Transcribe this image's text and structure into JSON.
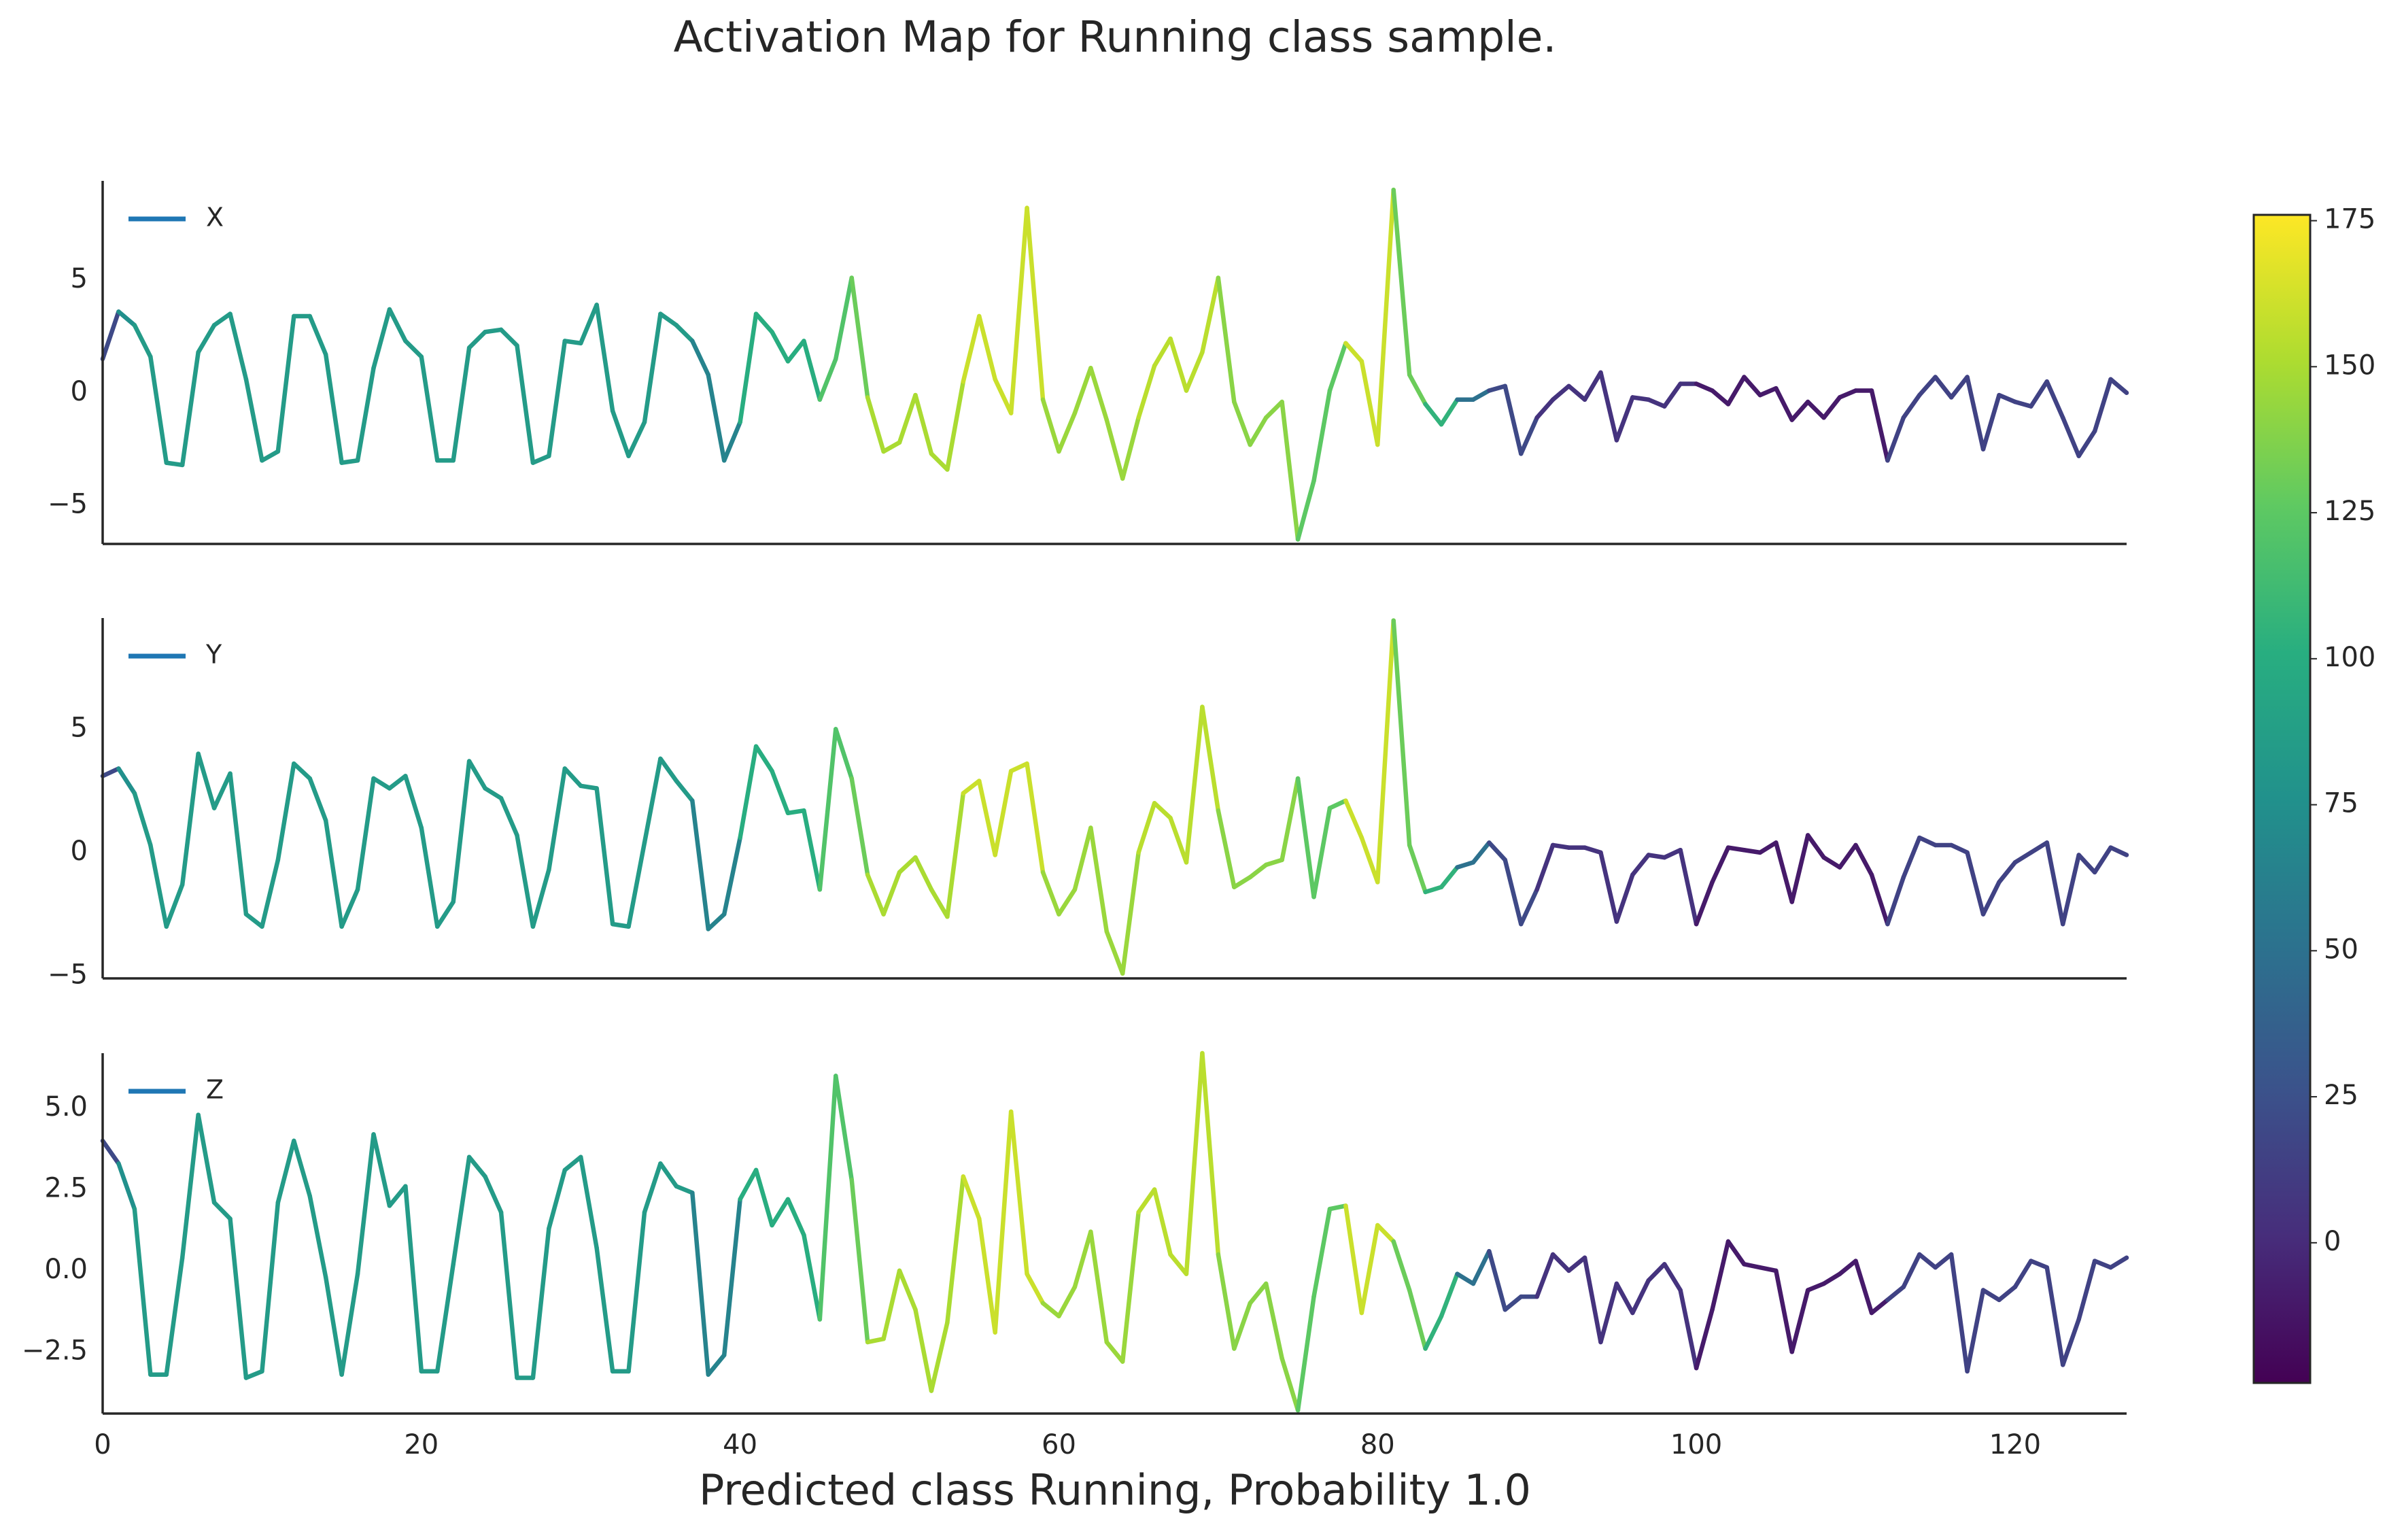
{
  "chart_data": {
    "type": "line",
    "title": "Activation Map for Running class sample.",
    "xlabel": "Predicted class Running, Probability 1.0",
    "x": [
      0,
      1,
      2,
      3,
      4,
      5,
      6,
      7,
      8,
      9,
      10,
      11,
      12,
      13,
      14,
      15,
      16,
      17,
      18,
      19,
      20,
      21,
      22,
      23,
      24,
      25,
      26,
      27,
      28,
      29,
      30,
      31,
      32,
      33,
      34,
      35,
      36,
      37,
      38,
      39,
      40,
      41,
      42,
      43,
      44,
      45,
      46,
      47,
      48,
      49,
      50,
      51,
      52,
      53,
      54,
      55,
      56,
      57,
      58,
      59,
      60,
      61,
      62,
      63,
      64,
      65,
      66,
      67,
      68,
      69,
      70,
      71,
      72,
      73,
      74,
      75,
      76,
      77,
      78,
      79,
      80,
      81,
      82,
      83,
      84,
      85,
      86,
      87,
      88,
      89,
      90,
      91,
      92,
      93,
      94,
      95,
      96,
      97,
      98,
      99,
      100,
      101,
      102,
      103,
      104,
      105,
      106,
      107,
      108,
      109,
      110,
      111,
      112,
      113,
      114,
      115,
      116,
      117,
      118,
      119,
      120,
      121,
      122,
      123,
      124,
      125,
      126,
      127
    ],
    "xlim": [
      0,
      127
    ],
    "xticks": [
      0,
      20,
      40,
      60,
      80,
      100,
      120
    ],
    "activation": [
      20,
      75,
      85,
      85,
      85,
      85,
      85,
      85,
      85,
      85,
      85,
      85,
      85,
      85,
      85,
      85,
      85,
      85,
      85,
      85,
      85,
      85,
      85,
      85,
      85,
      85,
      85,
      85,
      85,
      85,
      85,
      85,
      85,
      85,
      85,
      85,
      85,
      65,
      65,
      65,
      100,
      100,
      100,
      100,
      100,
      120,
      120,
      130,
      150,
      150,
      150,
      150,
      150,
      150,
      160,
      160,
      160,
      160,
      160,
      145,
      145,
      145,
      145,
      145,
      145,
      155,
      155,
      155,
      155,
      155,
      140,
      140,
      140,
      140,
      140,
      125,
      125,
      125,
      160,
      160,
      160,
      130,
      130,
      105,
      105,
      50,
      50,
      20,
      20,
      20,
      5,
      5,
      5,
      5,
      5,
      5,
      5,
      5,
      5,
      5,
      -10,
      -10,
      -10,
      -10,
      -10,
      -10,
      -10,
      -10,
      -10,
      -10,
      -10,
      -10,
      15,
      15,
      15,
      15,
      15,
      15,
      15,
      15,
      15,
      15,
      15,
      15,
      15,
      15,
      15,
      15
    ],
    "colormap": "viridis",
    "clim": [
      -24,
      176
    ],
    "cticks": [
      0,
      25,
      50,
      75,
      100,
      125,
      150,
      175
    ],
    "legend": "upper left",
    "legend_color": "#1f77b4",
    "panels": [
      {
        "name": "X",
        "ylim": [
          -6.7,
          9.4
        ],
        "yticks": [
          {
            "value": -5,
            "label": "−5"
          },
          0,
          5
        ],
        "values": [
          1.5,
          3.6,
          3.0,
          1.6,
          -3.1,
          -3.2,
          1.8,
          3.0,
          3.5,
          0.6,
          -3.0,
          -2.6,
          3.4,
          3.4,
          1.7,
          -3.1,
          -3.0,
          1.1,
          3.7,
          2.3,
          1.6,
          -3.0,
          -3.0,
          2.0,
          2.7,
          2.8,
          2.1,
          -3.1,
          -2.8,
          2.3,
          2.2,
          3.9,
          -0.8,
          -2.8,
          -1.3,
          3.5,
          3.0,
          2.3,
          0.8,
          -3.0,
          -1.3,
          3.5,
          2.7,
          1.4,
          2.3,
          -0.3,
          1.5,
          5.1,
          -0.2,
          -2.6,
          -2.2,
          -0.1,
          -2.7,
          -3.4,
          0.5,
          3.4,
          0.6,
          -0.9,
          8.2,
          -0.3,
          -2.6,
          -0.9,
          1.1,
          -1.2,
          -3.8,
          -1.1,
          1.2,
          2.4,
          0.1,
          1.8,
          5.1,
          -0.4,
          -2.3,
          -1.1,
          -0.4,
          -6.5,
          -3.9,
          0.1,
          2.2,
          1.4,
          -2.3,
          9.0,
          0.8,
          -0.5,
          -1.4,
          -0.3,
          -0.3,
          0.1,
          0.3,
          -2.7,
          -1.1,
          -0.3,
          0.3,
          -0.3,
          0.9,
          -2.1,
          -0.2,
          -0.3,
          -0.6,
          0.4,
          0.4,
          0.1,
          -0.5,
          0.7,
          -0.1,
          0.2,
          -1.2,
          -0.4,
          -1.1,
          -0.2,
          0.1,
          0.1,
          -3.0,
          -1.1,
          -0.1,
          0.7,
          -0.2,
          0.7,
          -2.5,
          -0.1,
          -0.4,
          -0.6,
          0.5,
          -1.1,
          -2.8,
          -1.7,
          0.6,
          0.0
        ]
      },
      {
        "name": "Y",
        "ylim": [
          -5.1,
          9.5
        ],
        "yticks": [
          {
            "value": -5,
            "label": "−5"
          },
          0,
          5
        ],
        "values": [
          3.1,
          3.4,
          2.4,
          0.3,
          -3.0,
          -1.3,
          4.0,
          1.8,
          3.2,
          -2.5,
          -3.0,
          -0.3,
          3.6,
          3.0,
          1.3,
          -3.0,
          -1.5,
          3.0,
          2.6,
          3.1,
          1.0,
          -3.0,
          -2.0,
          3.7,
          2.6,
          2.2,
          0.7,
          -3.0,
          -0.7,
          3.4,
          2.7,
          2.6,
          -2.9,
          -3.0,
          0.4,
          3.8,
          2.9,
          2.1,
          -3.1,
          -2.5,
          0.6,
          4.3,
          3.3,
          1.6,
          1.7,
          -1.5,
          5.0,
          3.0,
          -0.9,
          -2.5,
          -0.8,
          -0.2,
          -1.5,
          -2.6,
          2.4,
          2.9,
          -0.1,
          3.3,
          3.6,
          -0.8,
          -2.5,
          -1.5,
          1.0,
          -3.2,
          -4.9,
          0.0,
          2.0,
          1.4,
          -0.4,
          5.9,
          1.7,
          -1.4,
          -1.0,
          -0.5,
          -0.3,
          3.0,
          -1.8,
          1.8,
          2.1,
          0.6,
          -1.2,
          9.4,
          0.3,
          -1.6,
          -1.4,
          -0.6,
          -0.4,
          0.4,
          -0.3,
          -2.9,
          -1.5,
          0.3,
          0.2,
          0.2,
          0.0,
          -2.8,
          -0.9,
          -0.1,
          -0.2,
          0.1,
          -2.9,
          -1.2,
          0.2,
          0.1,
          0.0,
          0.4,
          -2.0,
          0.7,
          -0.2,
          -0.6,
          0.3,
          -0.9,
          -2.9,
          -1.0,
          0.6,
          0.3,
          0.3,
          0.0,
          -2.5,
          -1.2,
          -0.4,
          0.0,
          0.4,
          -2.9,
          -0.1,
          -0.8,
          0.2,
          -0.1
        ]
      },
      {
        "name": "Z",
        "ylim": [
          -4.4,
          6.7
        ],
        "yticks": [
          {
            "value": -2.5,
            "label": "−2.5"
          },
          {
            "value": 0,
            "label": "0.0"
          },
          {
            "value": 2.5,
            "label": "2.5"
          },
          {
            "value": 5,
            "label": "5.0"
          }
        ],
        "values": [
          4.0,
          3.3,
          1.9,
          -3.2,
          -3.2,
          0.4,
          4.8,
          2.1,
          1.6,
          -3.3,
          -3.1,
          2.1,
          4.0,
          2.3,
          -0.2,
          -3.2,
          -0.1,
          4.2,
          2.0,
          2.6,
          -3.1,
          -3.1,
          0.2,
          3.5,
          2.9,
          1.8,
          -3.3,
          -3.3,
          1.3,
          3.1,
          3.5,
          0.7,
          -3.1,
          -3.1,
          1.8,
          3.3,
          2.6,
          2.4,
          -3.2,
          -2.6,
          2.2,
          3.1,
          1.4,
          2.2,
          1.1,
          -1.5,
          6.0,
          2.8,
          -2.2,
          -2.1,
          0.0,
          -1.2,
          -3.7,
          -1.6,
          2.9,
          1.6,
          -1.9,
          4.9,
          -0.1,
          -1.0,
          -1.4,
          -0.5,
          1.2,
          -2.2,
          -2.8,
          1.8,
          2.5,
          0.5,
          -0.1,
          6.7,
          0.5,
          -2.4,
          -1.0,
          -0.4,
          -2.7,
          -4.3,
          -0.8,
          1.9,
          2.0,
          -1.3,
          1.4,
          0.9,
          -0.6,
          -2.4,
          -1.4,
          -0.1,
          -0.4,
          0.6,
          -1.2,
          -0.8,
          -0.8,
          0.5,
          0.0,
          0.4,
          -2.2,
          -0.4,
          -1.3,
          -0.3,
          0.2,
          -0.6,
          -3.0,
          -1.2,
          0.9,
          0.2,
          0.1,
          0.0,
          -2.5,
          -0.6,
          -0.4,
          -0.1,
          0.3,
          -1.3,
          -0.9,
          -0.5,
          0.5,
          0.1,
          0.5,
          -3.1,
          -0.6,
          -0.9,
          -0.5,
          0.3,
          0.1,
          -2.9,
          -1.5,
          0.3,
          0.1,
          0.4
        ]
      }
    ]
  }
}
